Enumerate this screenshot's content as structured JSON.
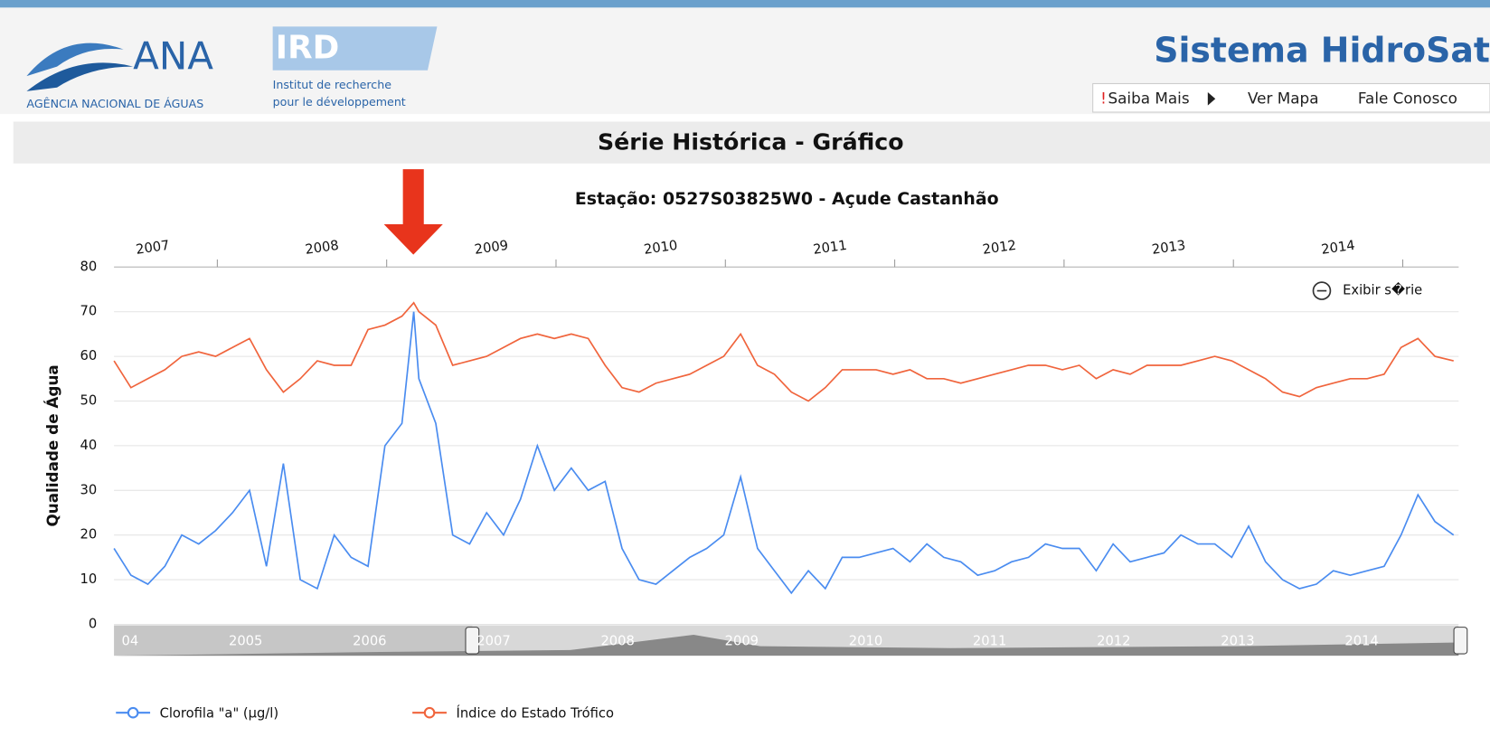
{
  "header": {
    "ana_logo": "ANA",
    "ana_name": "AGÊNCIA NACIONAL DE ÁGUAS",
    "ird_logo": "IRD",
    "ird_line1": "Institut de recherche",
    "ird_line2": "pour le développement",
    "system_title": "Sistema HidroSat",
    "nav": {
      "alert": "!",
      "items": [
        "Saiba Mais",
        "Ver Mapa",
        "Fale Conosco"
      ]
    }
  },
  "page_title": "Série Histórica - Gráfico",
  "zoom_button": "Exibir s�rie",
  "navigator": {
    "labels": [
      "04",
      "2005",
      "2006",
      "2007",
      "2008",
      "2009",
      "2010",
      "2011",
      "2012",
      "2013",
      "2014"
    ]
  },
  "chart_data": {
    "type": "line",
    "title": "Estação: 0527S03825W0 - Açude Castanhão",
    "y_label": "Qualidade de Água",
    "x": [
      2006.39,
      2006.49,
      2006.59,
      2006.69,
      2006.79,
      2006.89,
      2006.99,
      2007.09,
      2007.19,
      2007.29,
      2007.39,
      2007.49,
      2007.59,
      2007.69,
      2007.79,
      2007.89,
      2007.99,
      2008.09,
      2008.16,
      2008.19,
      2008.29,
      2008.39,
      2008.49,
      2008.59,
      2008.69,
      2008.79,
      2008.89,
      2008.99,
      2009.09,
      2009.19,
      2009.29,
      2009.39,
      2009.49,
      2009.59,
      2009.69,
      2009.79,
      2009.89,
      2009.99,
      2010.09,
      2010.19,
      2010.29,
      2010.39,
      2010.49,
      2010.59,
      2010.69,
      2010.79,
      2010.89,
      2010.99,
      2011.09,
      2011.19,
      2011.29,
      2011.39,
      2011.49,
      2011.59,
      2011.69,
      2011.79,
      2011.89,
      2011.99,
      2012.09,
      2012.19,
      2012.29,
      2012.39,
      2012.49,
      2012.59,
      2012.69,
      2012.79,
      2012.89,
      2012.99,
      2013.09,
      2013.19,
      2013.29,
      2013.39,
      2013.49,
      2013.59,
      2013.69,
      2013.79,
      2013.89,
      2013.99,
      2014.09,
      2014.19,
      2014.3
    ],
    "series": [
      {
        "name": "Clorofila \"a\" (µg/l)",
        "color": "#4a8cf0",
        "values": [
          17,
          11,
          9,
          13,
          20,
          18,
          21,
          25,
          30,
          13,
          36,
          10,
          8,
          20,
          15,
          13,
          40,
          45,
          70,
          55,
          45,
          20,
          18,
          25,
          20,
          28,
          40,
          30,
          35,
          30,
          32,
          17,
          10,
          9,
          12,
          15,
          17,
          20,
          33,
          17,
          12,
          7,
          12,
          8,
          15,
          15,
          16,
          17,
          14,
          18,
          15,
          14,
          11,
          12,
          14,
          15,
          18,
          17,
          17,
          12,
          18,
          14,
          15,
          16,
          20,
          18,
          18,
          15,
          22,
          14,
          10,
          8,
          9,
          12,
          11,
          12,
          13,
          20,
          29,
          23,
          20
        ]
      },
      {
        "name": "Índice do Estado Trófico",
        "color": "#f0643c",
        "values": [
          59,
          53,
          55,
          57,
          60,
          61,
          60,
          62,
          64,
          57,
          52,
          55,
          59,
          58,
          58,
          66,
          67,
          69,
          72,
          70,
          67,
          58,
          59,
          60,
          62,
          64,
          65,
          64,
          65,
          64,
          58,
          53,
          52,
          54,
          55,
          56,
          58,
          60,
          65,
          58,
          56,
          52,
          50,
          53,
          57,
          57,
          57,
          56,
          57,
          55,
          55,
          54,
          55,
          56,
          57,
          58,
          58,
          57,
          58,
          55,
          57,
          56,
          58,
          58,
          58,
          59,
          60,
          59,
          57,
          55,
          52,
          51,
          53,
          54,
          55,
          55,
          56,
          62,
          64,
          60,
          59
        ]
      }
    ],
    "xlim": [
      2006.39,
      2014.33
    ],
    "xticks": [
      2007,
      2008,
      2009,
      2010,
      2011,
      2012,
      2013,
      2014
    ],
    "ylim": [
      0,
      80
    ],
    "yticks": [
      0,
      10,
      20,
      30,
      40,
      50,
      60,
      70,
      80
    ],
    "grid": true
  }
}
